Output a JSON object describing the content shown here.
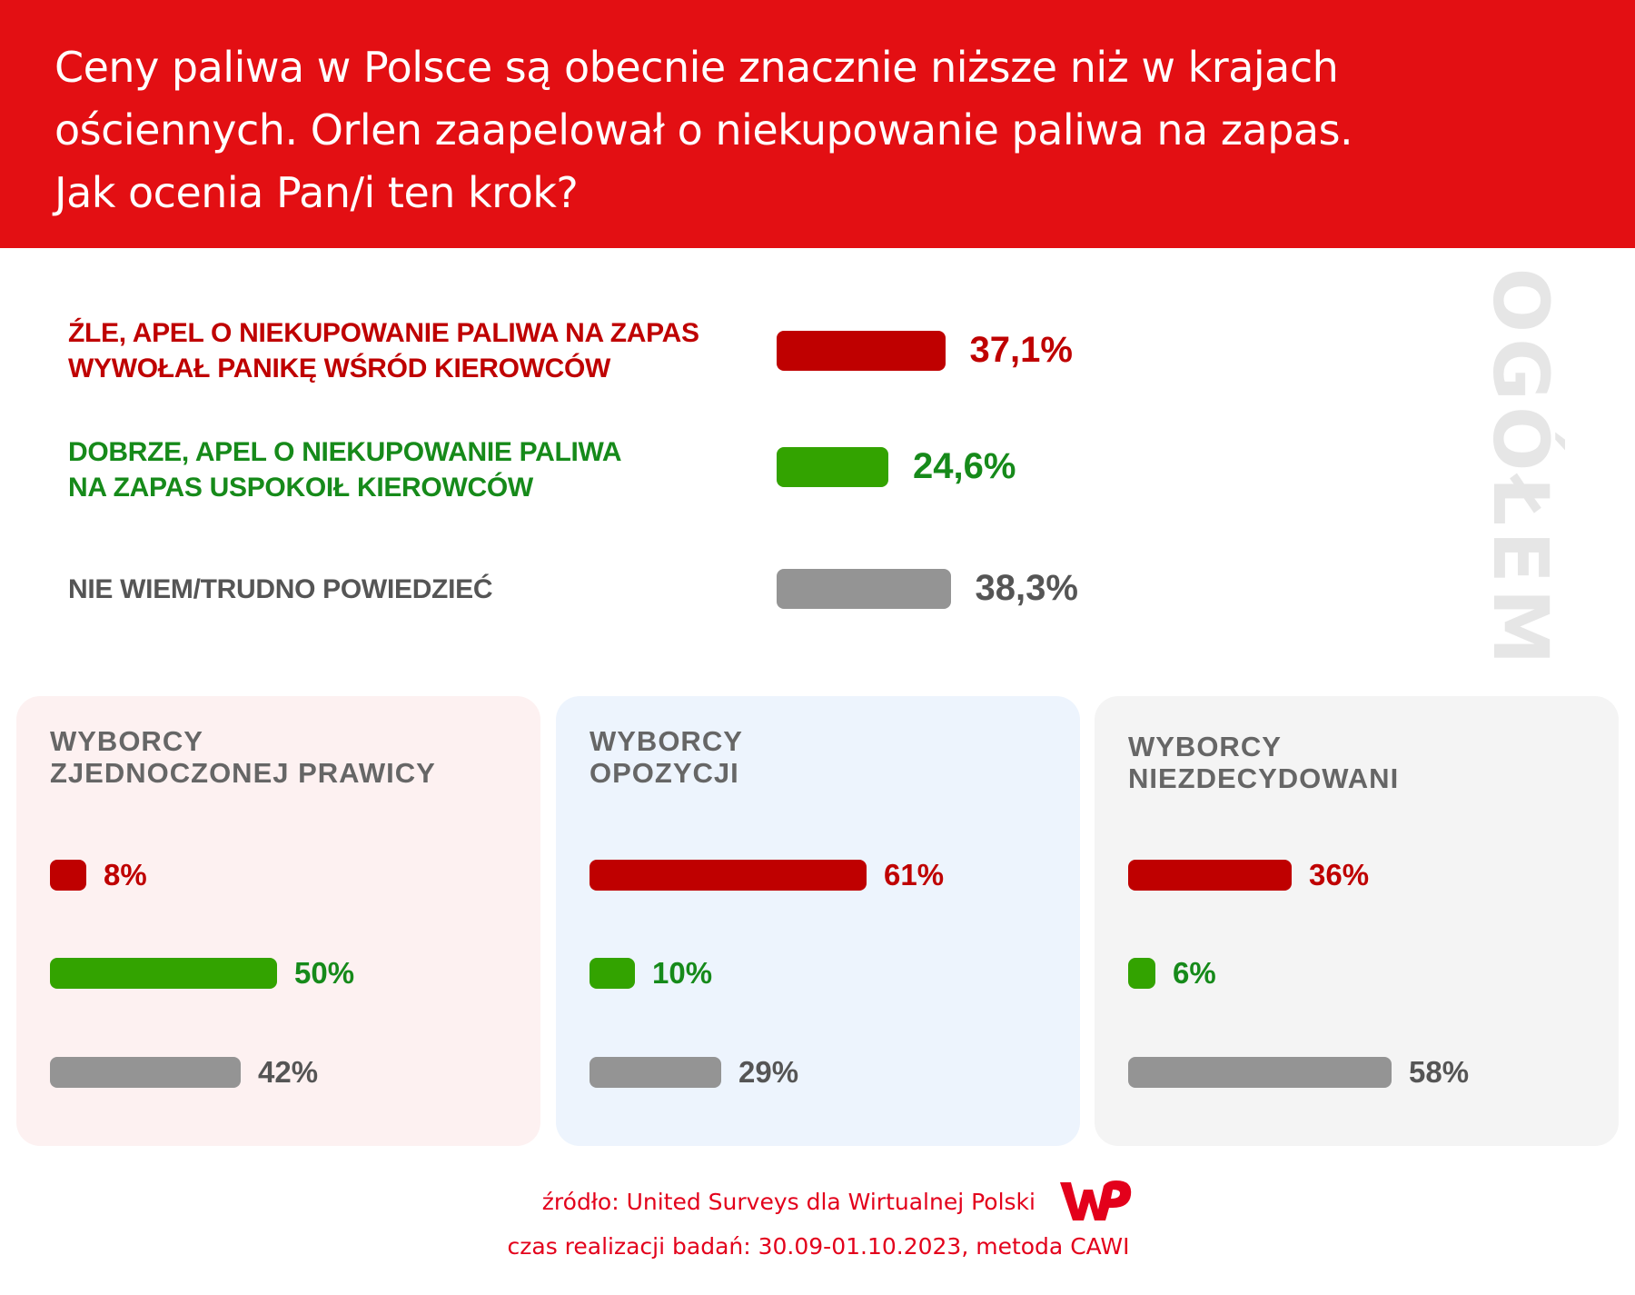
{
  "header": {
    "title_lines": [
      "Ceny paliwa w Polsce są obecnie znacznie niższe niż w krajach",
      "ościennych. Orlen zaapelował o niekupowanie paliwa na zapas.",
      "Jak ocenia Pan/i ten krok?"
    ]
  },
  "colors": {
    "header": "#e30f13",
    "bad": "#bf0000",
    "good": "#33a300",
    "unknown": "#949494"
  },
  "chart_data": {
    "type": "bar",
    "orientation": "horizontal",
    "overall": {
      "side_label": "OGÓŁEM",
      "rows": [
        {
          "label_lines": [
            "ŹLE, APEL O NIEKUPOWANIE PALIWA NA ZAPAS",
            "WYWOŁAŁ PANIKĘ WŚRÓD KIEROWCÓW"
          ],
          "value": 37.1,
          "value_label": "37,1%"
        },
        {
          "label_lines": [
            "DOBRZE, APEL O NIEKUPOWANIE PALIWA",
            "NA ZAPAS USPOKOIŁ KIEROWCÓW"
          ],
          "value": 24.6,
          "value_label": "24,6%"
        },
        {
          "label_lines": [
            "NIE WIEM/TRUDNO POWIEDZIEĆ"
          ],
          "value": 38.3,
          "value_label": "38,3%"
        }
      ]
    },
    "groups": [
      {
        "title_lines": [
          "WYBORCY",
          "ZJEDNOCZONEJ PRAWICY"
        ],
        "values": [
          8,
          50,
          42
        ],
        "value_labels": [
          "8%",
          "50%",
          "42%"
        ]
      },
      {
        "title_lines": [
          "WYBORCY",
          "OPOZYCJI"
        ],
        "values": [
          61,
          10,
          29
        ],
        "value_labels": [
          "61%",
          "10%",
          "29%"
        ]
      },
      {
        "title_lines": [
          "WYBORCY",
          "NIEZDECYDOWANI"
        ],
        "values": [
          36,
          6,
          58
        ],
        "value_labels": [
          "36%",
          "6%",
          "58%"
        ]
      }
    ],
    "categories": [
      "Źle",
      "Dobrze",
      "Nie wiem"
    ],
    "xlim": [
      0,
      100
    ]
  },
  "footer": {
    "source": "źródło: United Surveys dla Wirtualnej Polski",
    "period": "czas realizacji badań: 30.09-01.10.2023, metoda CAWI",
    "logo": "WP"
  }
}
